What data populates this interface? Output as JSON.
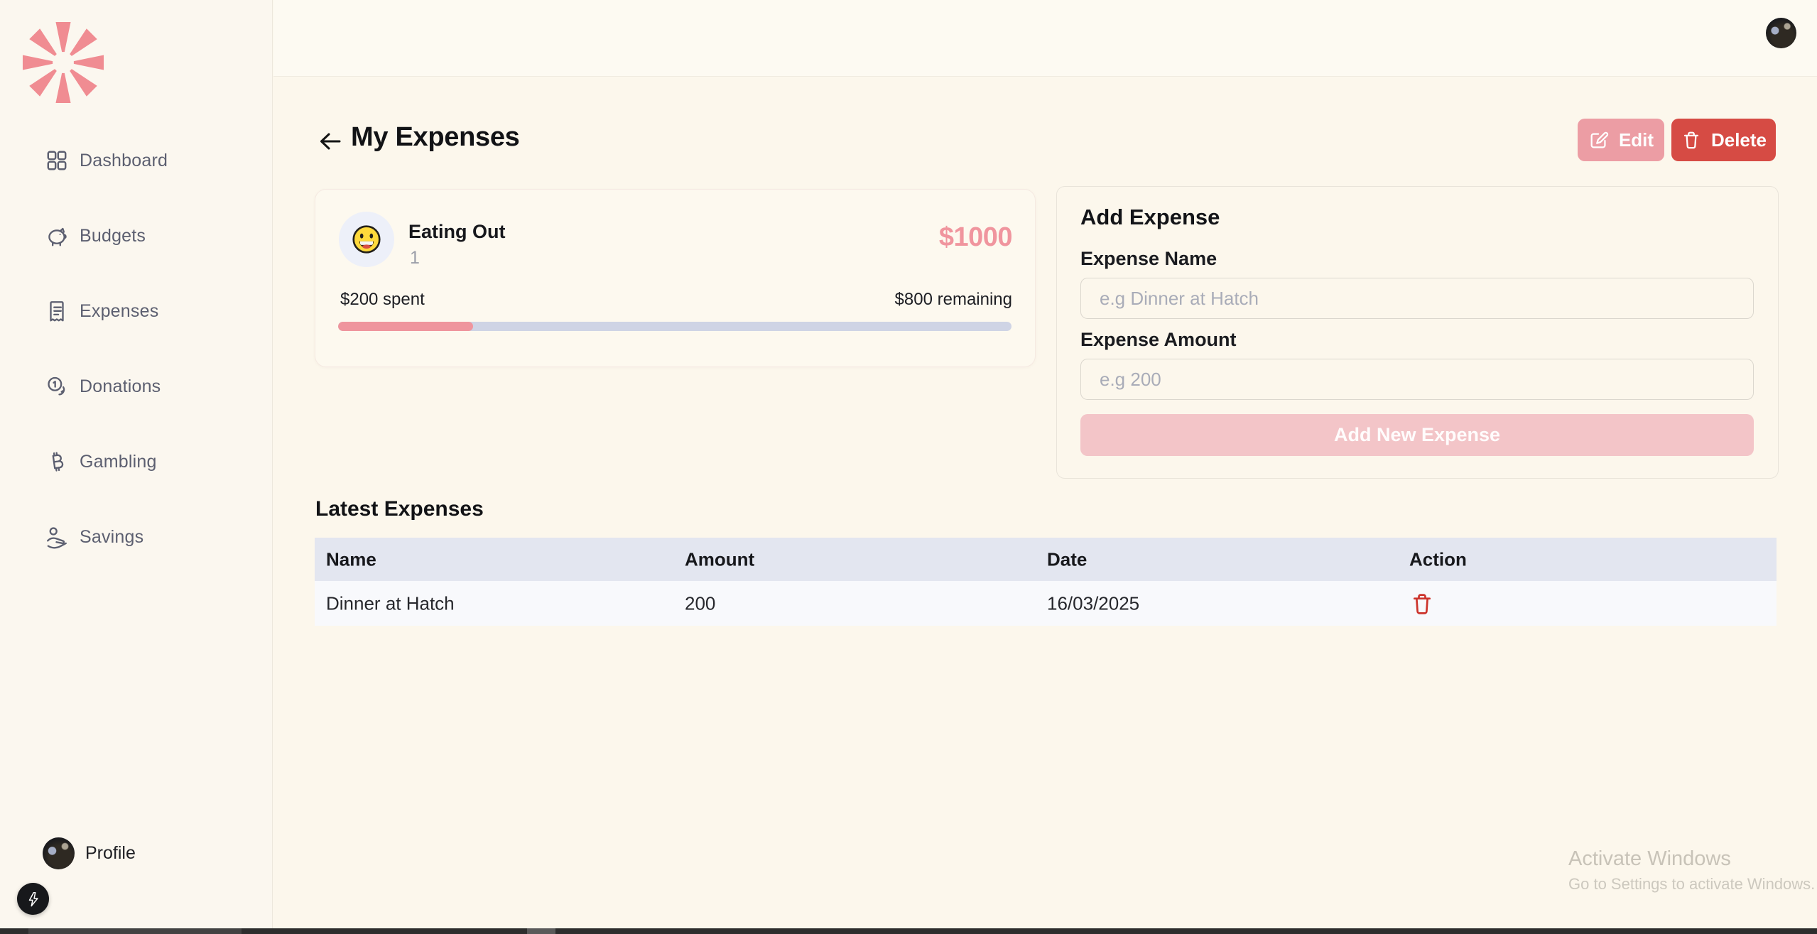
{
  "sidebar": {
    "nav": [
      {
        "label": "Dashboard",
        "icon": "grid-icon"
      },
      {
        "label": "Budgets",
        "icon": "piggy-bank-icon"
      },
      {
        "label": "Expenses",
        "icon": "receipt-icon"
      },
      {
        "label": "Donations",
        "icon": "coins-icon"
      },
      {
        "label": "Gambling",
        "icon": "bitcoin-icon"
      },
      {
        "label": "Savings",
        "icon": "hand-coin-icon"
      }
    ],
    "profile_label": "Profile",
    "logo_icon": "asterisk-burst-logo",
    "fab_icon": "lightning-icon"
  },
  "header": {
    "title": "My Expenses",
    "back_icon": "arrow-left-icon",
    "edit_label": "Edit",
    "edit_icon": "pencil-square-icon",
    "delete_label": "Delete",
    "delete_icon": "trash-icon"
  },
  "budget_card": {
    "name": "Eating Out",
    "count": "1",
    "amount": "$1000",
    "spent_label": "$200 spent",
    "remaining_label": "$800 remaining",
    "progress_pct": 20,
    "emoji": "grinning-face-emoji"
  },
  "add_expense": {
    "title": "Add Expense",
    "name_label": "Expense Name",
    "name_placeholder": "e.g Dinner at Hatch",
    "name_value": "",
    "amount_label": "Expense Amount",
    "amount_placeholder": "e.g 200",
    "amount_value": "",
    "submit_label": "Add New Expense"
  },
  "latest_expenses": {
    "title": "Latest Expenses",
    "columns": [
      "Name",
      "Amount",
      "Date",
      "Action"
    ],
    "rows": [
      {
        "name": "Dinner at Hatch",
        "amount": "200",
        "date": "16/03/2025",
        "action_icon": "trash-icon"
      }
    ]
  },
  "watermark": {
    "line1": "Activate Windows",
    "line2": "Go to Settings to activate Windows."
  },
  "colors": {
    "sidebar_bg": "#FBF7EF",
    "page_bg": "#FCF7EC",
    "accent_pink": "#EC9DA4",
    "accent_red": "#D64B44",
    "amount_pink": "#F0959E",
    "progress_fill": "#EF959D",
    "progress_track": "#CFD4E5",
    "table_header_bg": "#E3E6F0",
    "table_row_bg": "#F8F9FC",
    "logo_pink": "#F08C92"
  }
}
